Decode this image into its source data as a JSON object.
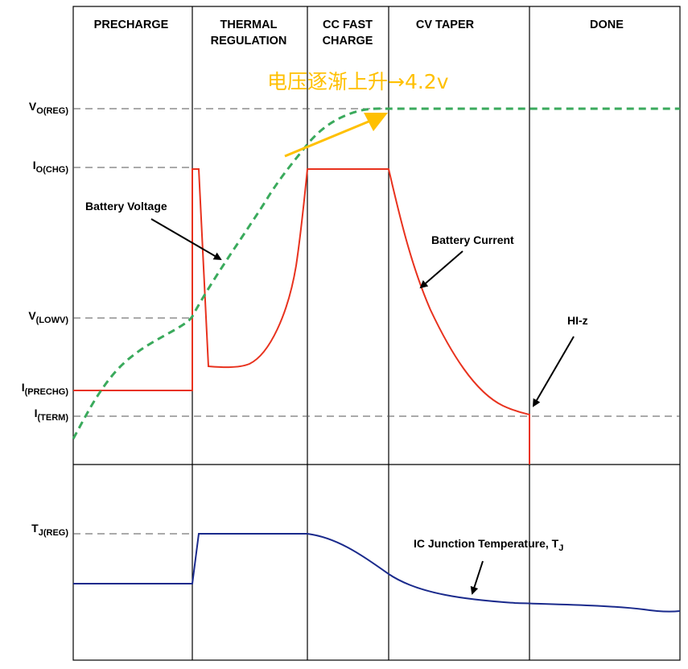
{
  "phases": [
    "PRECHARGE",
    "THERMAL\nREGULATION",
    "CC FAST\nCHARGE",
    "CV TAPER",
    "DONE"
  ],
  "levels": {
    "vreg": {
      "main": "V",
      "sub": "O(REG)"
    },
    "ichg": {
      "main": "I",
      "sub": "O(CHG)"
    },
    "vlowv": {
      "main": "V",
      "sub": "(LOWV)"
    },
    "iprechg": {
      "main": "I",
      "sub": "(PRECHG)"
    },
    "iterm": {
      "main": "I",
      "sub": "(TERM)"
    },
    "tjreg": {
      "main": "T",
      "sub": "J(REG)"
    }
  },
  "annotations": {
    "battery_voltage": "Battery Voltage",
    "battery_current": "Battery Current",
    "hiz": "HI-z",
    "junction_temp": {
      "main": "IC Junction Temperature, T",
      "sub": "J"
    },
    "chinese_note": "电压逐渐上升→4.2v"
  },
  "colors": {
    "voltage": "#3aaa5c",
    "current": "#e8321e",
    "temperature": "#1a2a8c",
    "highlight": "#ffc000",
    "grid": "#000000",
    "dash": "#555555"
  }
}
